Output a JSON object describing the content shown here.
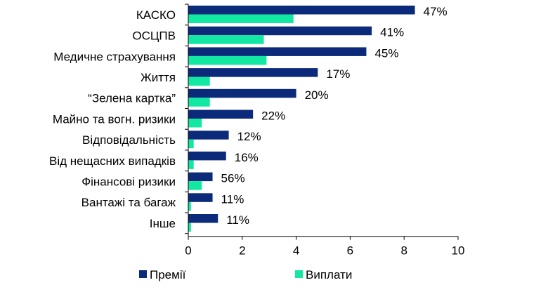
{
  "chart_data": {
    "type": "bar",
    "orientation": "horizontal",
    "categories": [
      "КАСКО",
      "ОСЦПВ",
      "Медичне страхування",
      "Життя",
      "“Зелена картка”",
      "Майно та вогн. ризики",
      "Відповідальність",
      "Від нещасних випадків",
      "Фінансові ризики",
      "Вантажі та багаж",
      "Інше"
    ],
    "series": [
      {
        "name": "Премії",
        "color": "#0b2a7a",
        "values": [
          8.4,
          6.8,
          6.6,
          4.8,
          4.0,
          2.4,
          1.5,
          1.4,
          0.9,
          0.9,
          1.1
        ]
      },
      {
        "name": "Виплати",
        "color": "#13e8a3",
        "values": [
          3.9,
          2.8,
          2.9,
          0.8,
          0.8,
          0.5,
          0.2,
          0.2,
          0.5,
          0.1,
          0.1
        ]
      }
    ],
    "data_labels": [
      "47%",
      "41%",
      "45%",
      "17%",
      "20%",
      "22%",
      "12%",
      "16%",
      "56%",
      "11%",
      "11%"
    ],
    "xlim": [
      0,
      10
    ],
    "xticks": [
      "0",
      "2",
      "4",
      "6",
      "8",
      "10"
    ],
    "grid": false,
    "legend_position": "bottom"
  }
}
